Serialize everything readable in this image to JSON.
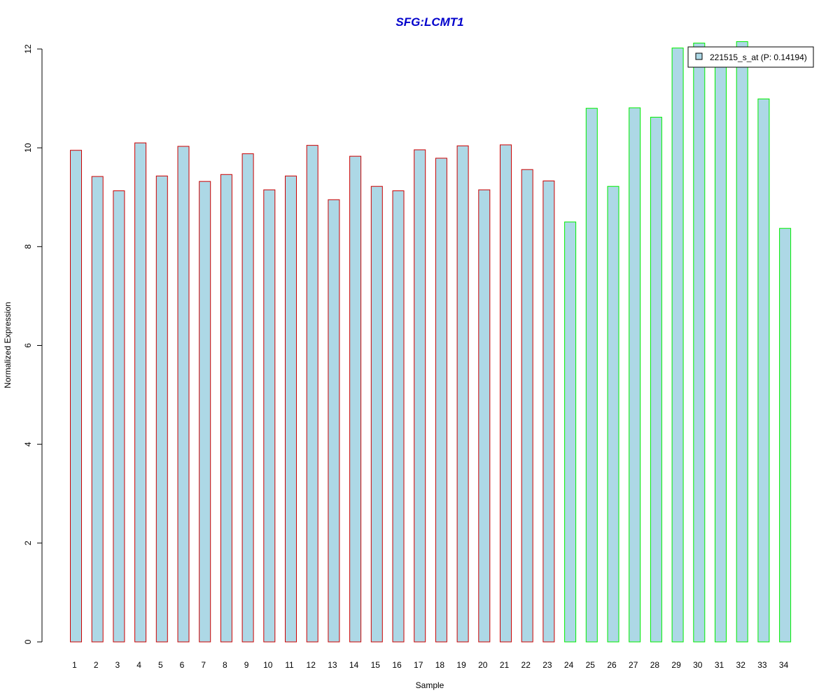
{
  "chart_data": {
    "type": "bar",
    "title": "SFG:LCMT1",
    "xlabel": "Sample",
    "ylabel": "Normalized Expression",
    "ylim": [
      0,
      12
    ],
    "yticks": [
      "0",
      "2",
      "4",
      "6",
      "8",
      "10",
      "12"
    ],
    "grid": false,
    "categories": [
      "1",
      "2",
      "3",
      "4",
      "5",
      "6",
      "7",
      "8",
      "9",
      "10",
      "11",
      "12",
      "13",
      "14",
      "15",
      "16",
      "17",
      "18",
      "19",
      "20",
      "21",
      "22",
      "23",
      "24",
      "25",
      "26",
      "27",
      "28",
      "29",
      "30",
      "31",
      "32",
      "33",
      "34"
    ],
    "series": [
      {
        "name": "221515_s_at (P: 0.14194)",
        "values": [
          9.95,
          9.42,
          9.13,
          10.1,
          9.43,
          10.03,
          9.32,
          9.46,
          9.88,
          9.15,
          9.43,
          10.05,
          8.95,
          9.83,
          9.22,
          9.13,
          9.96,
          9.79,
          10.04,
          9.15,
          10.06,
          9.56,
          9.33,
          8.5,
          10.8,
          9.22,
          10.81,
          10.62,
          12.02,
          12.12,
          11.75,
          12.15,
          10.99,
          8.37
        ]
      }
    ],
    "group_colors": [
      "#cc0000",
      "#cc0000",
      "#cc0000",
      "#cc0000",
      "#cc0000",
      "#cc0000",
      "#cc0000",
      "#cc0000",
      "#cc0000",
      "#cc0000",
      "#cc0000",
      "#cc0000",
      "#cc0000",
      "#cc0000",
      "#cc0000",
      "#cc0000",
      "#cc0000",
      "#cc0000",
      "#cc0000",
      "#cc0000",
      "#cc0000",
      "#cc0000",
      "#cc0000",
      "#00ee00",
      "#00ee00",
      "#00ee00",
      "#00ee00",
      "#00ee00",
      "#00ee00",
      "#00ee00",
      "#00ee00",
      "#00ee00",
      "#00ee00",
      "#00ee00"
    ],
    "bar_fill": "#add8e6",
    "title_color": "#0000cc",
    "legend_position": "top-right"
  }
}
